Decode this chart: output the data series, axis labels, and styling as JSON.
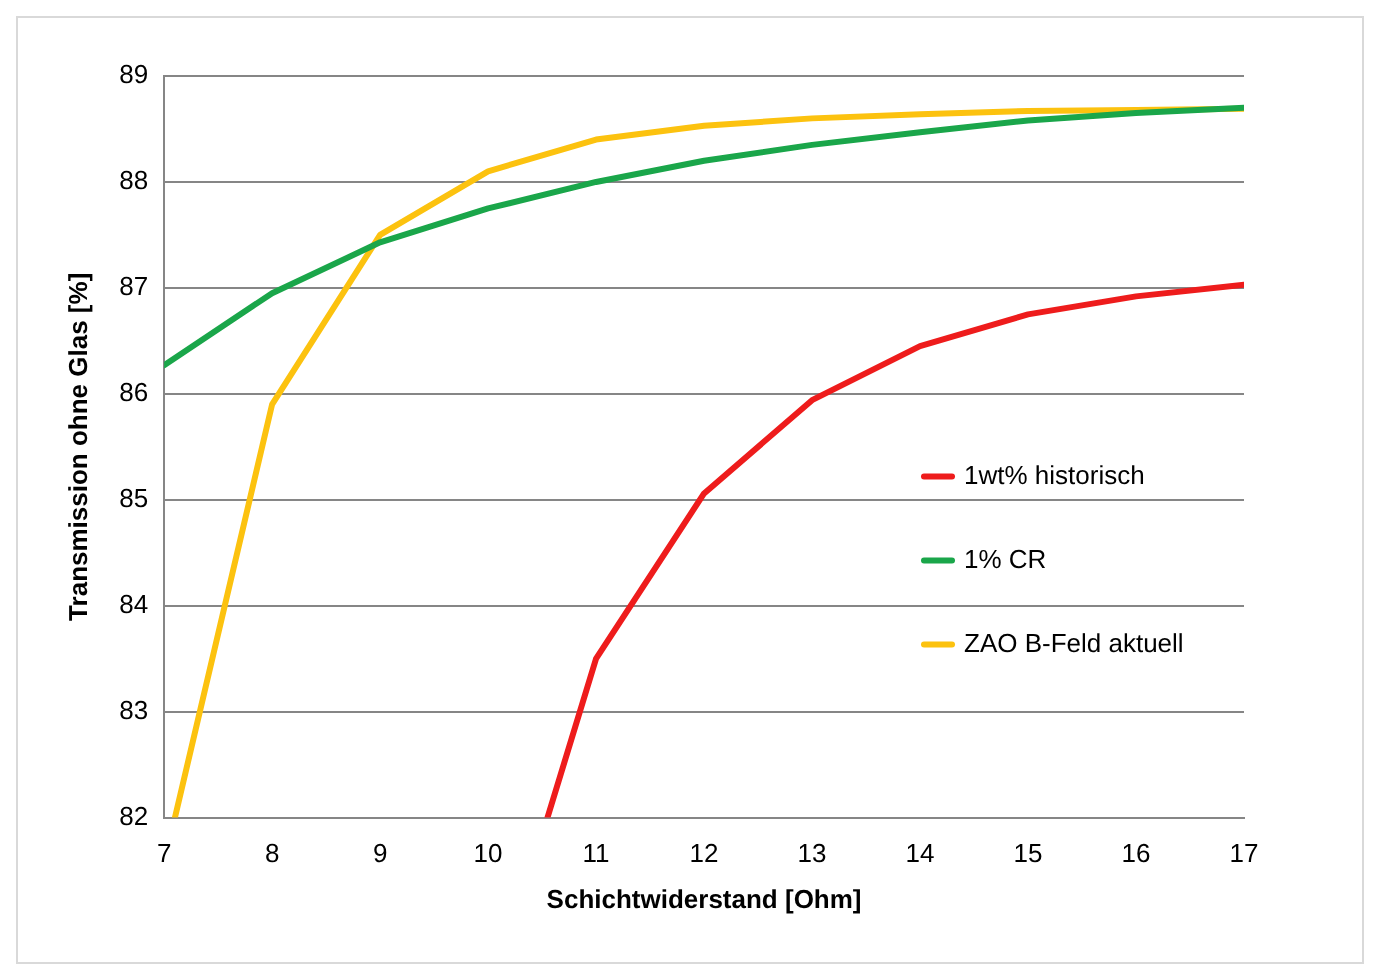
{
  "chart_data": {
    "type": "line",
    "xlabel": "Schichtwiderstand [Ohm]",
    "ylabel": "Transmission ohne Glas [%]",
    "xlim": [
      7,
      17
    ],
    "xticks": [
      7,
      8,
      9,
      10,
      11,
      12,
      13,
      14,
      15,
      16,
      17
    ],
    "ylim": [
      82,
      89
    ],
    "yticks": [
      82,
      83,
      84,
      85,
      86,
      87,
      88,
      89
    ],
    "grid": "y",
    "legend": "right",
    "marker": "none",
    "line_style": "solid",
    "series": [
      {
        "name": "1wt% historisch",
        "color": "#ee1c1c",
        "x": [
          10.55,
          11,
          12,
          13,
          14,
          15,
          16,
          17
        ],
        "values": [
          82,
          83.5,
          85.06,
          85.94,
          86.45,
          86.75,
          86.92,
          87.03
        ]
      },
      {
        "name": "1% CR",
        "color": "#1aa64a",
        "x": [
          7,
          8,
          9,
          10,
          11,
          12,
          13,
          14,
          15,
          16,
          17
        ],
        "values": [
          86.27,
          86.95,
          87.43,
          87.75,
          88.0,
          88.2,
          88.35,
          88.47,
          88.58,
          88.65,
          88.7
        ]
      },
      {
        "name": "ZAO B-Feld aktuell",
        "color": "#fcc20f",
        "x": [
          7.1,
          8,
          9,
          10,
          11,
          12,
          13,
          14,
          15,
          16,
          17
        ],
        "values": [
          82,
          85.9,
          87.5,
          88.1,
          88.4,
          88.53,
          88.6,
          88.64,
          88.67,
          88.68,
          88.69
        ]
      }
    ]
  }
}
